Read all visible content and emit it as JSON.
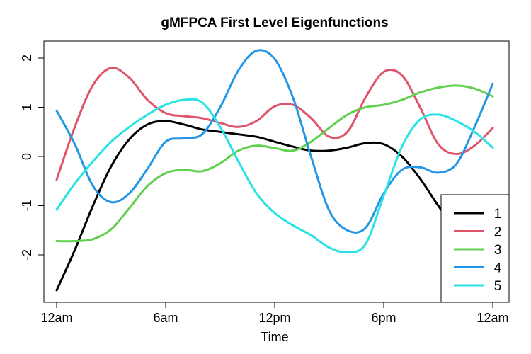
{
  "chart_data": {
    "type": "line",
    "title": "gMFPCA First Level Eigenfunctions",
    "xlabel": "Time",
    "ylabel": "",
    "xlim": [
      0,
      24
    ],
    "ylim": [
      -2.9,
      2.35
    ],
    "x_ticks": [
      {
        "value": 0,
        "label": "12am"
      },
      {
        "value": 6,
        "label": "6am"
      },
      {
        "value": 12,
        "label": "12pm"
      },
      {
        "value": 18,
        "label": "6pm"
      },
      {
        "value": 24,
        "label": "12am"
      }
    ],
    "y_ticks": [
      {
        "value": 2,
        "label": "2"
      },
      {
        "value": 1,
        "label": "1"
      },
      {
        "value": 0,
        "label": "0"
      },
      {
        "value": -1,
        "label": "-1"
      },
      {
        "value": -2,
        "label": "-2"
      }
    ],
    "legend_position": "bottom-right",
    "x": [
      0,
      1,
      2,
      3,
      4,
      5,
      6,
      7,
      8,
      9,
      10,
      11,
      12,
      13,
      14,
      15,
      16,
      17,
      18,
      19,
      20,
      21,
      22,
      23,
      24
    ],
    "series": [
      {
        "name": "1",
        "color": "#000000",
        "values": [
          -2.72,
          -1.9,
          -1.0,
          -0.2,
          0.35,
          0.65,
          0.72,
          0.65,
          0.55,
          0.5,
          0.45,
          0.4,
          0.3,
          0.2,
          0.12,
          0.12,
          0.18,
          0.27,
          0.25,
          0.0,
          -0.45,
          -1.0,
          -1.5,
          -1.8,
          -1.95
        ]
      },
      {
        "name": "2",
        "color": "#DF536B",
        "values": [
          -0.47,
          0.6,
          1.45,
          1.8,
          1.6,
          1.15,
          0.88,
          0.82,
          0.78,
          0.68,
          0.6,
          0.72,
          1.02,
          1.05,
          0.78,
          0.4,
          0.5,
          1.2,
          1.72,
          1.65,
          1.0,
          0.25,
          0.05,
          0.22,
          0.58
        ]
      },
      {
        "name": "3",
        "color": "#61D04F",
        "values": [
          -1.72,
          -1.72,
          -1.68,
          -1.48,
          -1.05,
          -0.6,
          -0.34,
          -0.27,
          -0.3,
          -0.14,
          0.12,
          0.22,
          0.17,
          0.12,
          0.3,
          0.58,
          0.85,
          1.0,
          1.05,
          1.15,
          1.3,
          1.4,
          1.44,
          1.38,
          1.22
        ]
      },
      {
        "name": "4",
        "color": "#2297E6",
        "values": [
          0.93,
          0.25,
          -0.6,
          -0.93,
          -0.75,
          -0.25,
          0.3,
          0.37,
          0.45,
          1.0,
          1.75,
          2.15,
          1.98,
          1.2,
          0.0,
          -1.1,
          -1.5,
          -1.45,
          -0.75,
          -0.27,
          -0.22,
          -0.33,
          -0.15,
          0.6,
          1.48
        ]
      },
      {
        "name": "5",
        "color": "#28E2E5",
        "values": [
          -1.08,
          -0.55,
          -0.1,
          0.3,
          0.6,
          0.85,
          1.05,
          1.15,
          1.1,
          0.6,
          -0.1,
          -0.75,
          -1.15,
          -1.4,
          -1.6,
          -1.85,
          -1.95,
          -1.78,
          -0.8,
          0.2,
          0.75,
          0.85,
          0.72,
          0.5,
          0.18
        ]
      }
    ]
  }
}
